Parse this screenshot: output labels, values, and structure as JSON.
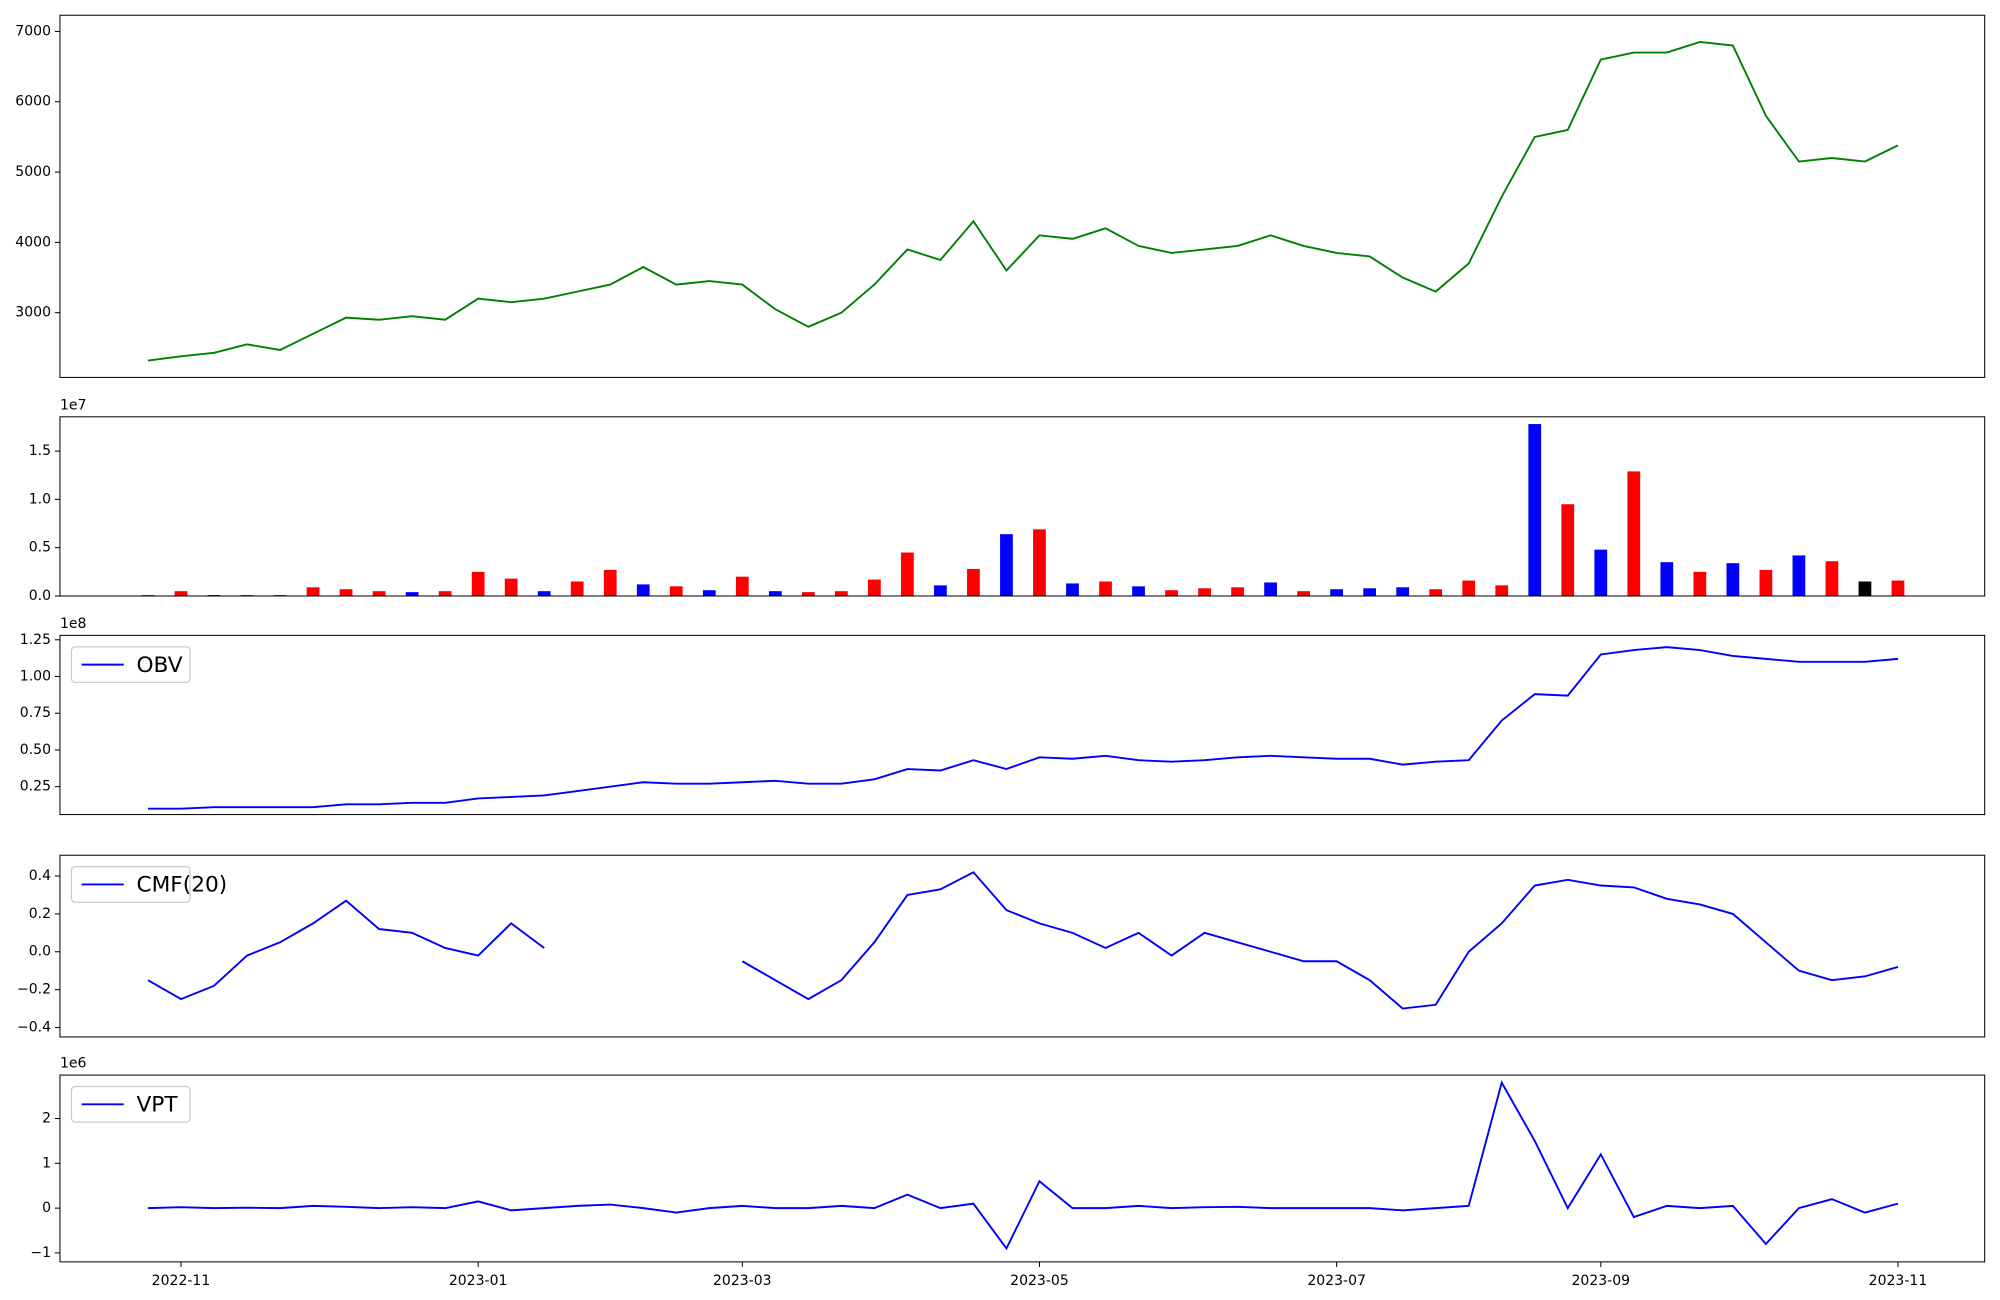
{
  "chart_data": [
    {
      "type": "line",
      "ylim": [
        2080,
        7230
      ],
      "yticks": [
        3000,
        4000,
        5000,
        6000,
        7000
      ],
      "series": [
        {
          "color": "green",
          "values": [
            2320,
            2380,
            2430,
            2550,
            2470,
            2700,
            2930,
            2900,
            2950,
            2900,
            3200,
            3150,
            3200,
            3300,
            3400,
            3650,
            3400,
            3450,
            3400,
            3050,
            2800,
            3000,
            3400,
            3900,
            3750,
            4300,
            3600,
            4100,
            4050,
            4200,
            3950,
            3850,
            3900,
            3950,
            4100,
            3950,
            3850,
            3800,
            3500,
            3300,
            3700,
            4650,
            5500,
            5600,
            6600,
            6700,
            6700,
            6850,
            6800,
            5800,
            5150,
            5200,
            5150,
            5380
          ]
        }
      ]
    },
    {
      "type": "bar",
      "ylim": [
        0,
        18550000
      ],
      "y_offset_label": "1e7",
      "yticks": [
        {
          "value": 0,
          "label": "0.0"
        },
        {
          "value": 5000000,
          "label": "0.5"
        },
        {
          "value": 10000000,
          "label": "1.0"
        },
        {
          "value": 15000000,
          "label": "1.5"
        }
      ],
      "values": [
        100000,
        500000,
        100000,
        100000,
        100000,
        900000,
        700000,
        500000,
        400000,
        500000,
        2500000,
        1800000,
        500000,
        1500000,
        2700000,
        1200000,
        1000000,
        600000,
        2000000,
        500000,
        400000,
        500000,
        1700000,
        4500000,
        1100000,
        2800000,
        6400000,
        6900000,
        1300000,
        1500000,
        1000000,
        600000,
        800000,
        900000,
        1400000,
        500000,
        700000,
        800000,
        900000,
        700000,
        1600000,
        1100000,
        17800000,
        9500000,
        4800000,
        12900000,
        3500000,
        2500000,
        3400000,
        2700000,
        4200000,
        3600000,
        1500000,
        1600000
      ],
      "colors": [
        "red",
        "red",
        "blue",
        "red",
        "red",
        "red",
        "red",
        "red",
        "blue",
        "red",
        "red",
        "red",
        "blue",
        "red",
        "red",
        "blue",
        "red",
        "blue",
        "red",
        "blue",
        "red",
        "red",
        "red",
        "red",
        "blue",
        "red",
        "blue",
        "red",
        "blue",
        "red",
        "blue",
        "red",
        "red",
        "red",
        "blue",
        "red",
        "blue",
        "blue",
        "blue",
        "red",
        "red",
        "red",
        "blue",
        "red",
        "blue",
        "red",
        "blue",
        "red",
        "blue",
        "red",
        "blue",
        "red",
        "black",
        "red"
      ]
    },
    {
      "type": "line",
      "ylim": [
        6000000,
        128000000
      ],
      "y_offset_label": "1e8",
      "legend": "upper left",
      "yticks": [
        {
          "value": 25000000,
          "label": "0.25"
        },
        {
          "value": 50000000,
          "label": "0.50"
        },
        {
          "value": 75000000,
          "label": "0.75"
        },
        {
          "value": 100000000,
          "label": "1.00"
        },
        {
          "value": 125000000,
          "label": "1.25"
        }
      ],
      "series": [
        {
          "name": "OBV",
          "color": "blue",
          "values": [
            10000000,
            10000000,
            11000000,
            11000000,
            11000000,
            11000000,
            13000000,
            13000000,
            14000000,
            14000000,
            17000000,
            18000000,
            19000000,
            22000000,
            25000000,
            28000000,
            27000000,
            27000000,
            28000000,
            29000000,
            27000000,
            27000000,
            30000000,
            37000000,
            36000000,
            43000000,
            37000000,
            45000000,
            44000000,
            46000000,
            43000000,
            42000000,
            43000000,
            45000000,
            46000000,
            45000000,
            44000000,
            44000000,
            40000000,
            42000000,
            43000000,
            70000000,
            88000000,
            87000000,
            115000000,
            118000000,
            120000000,
            118000000,
            114000000,
            112000000,
            110000000,
            110000000,
            110000000,
            112000000
          ]
        }
      ]
    },
    {
      "type": "line",
      "ylim": [
        -0.45,
        0.51
      ],
      "legend": "upper left",
      "yticks": [
        {
          "value": -0.4,
          "label": "−0.4"
        },
        {
          "value": -0.2,
          "label": "−0.2"
        },
        {
          "value": 0,
          "label": "0.0"
        },
        0.2,
        0.4
      ],
      "series": [
        {
          "name": "CMF(20)",
          "color": "blue",
          "values": [
            -0.15,
            -0.25,
            -0.18,
            -0.02,
            0.05,
            0.15,
            0.27,
            0.12,
            0.1,
            0.02,
            -0.02,
            0.15,
            0.02,
            null,
            null,
            null,
            null,
            null,
            -0.05,
            -0.15,
            -0.25,
            -0.15,
            0.05,
            0.3,
            0.33,
            0.42,
            0.22,
            0.15,
            0.1,
            0.02,
            0.1,
            -0.02,
            0.1,
            0.05,
            0,
            -0.05,
            -0.05,
            -0.15,
            -0.3,
            -0.28,
            0,
            0.15,
            0.35,
            0.38,
            0.35,
            0.34,
            0.28,
            0.25,
            0.2,
            0.05,
            -0.1,
            -0.15,
            -0.13,
            -0.08
          ]
        }
      ]
    },
    {
      "type": "line",
      "ylim": [
        -1200000,
        2970000
      ],
      "y_offset_label": "1e6",
      "legend": "upper left",
      "yticks": [
        {
          "value": -1000000,
          "label": "−1"
        },
        0,
        {
          "value": 1000000,
          "label": "1"
        },
        {
          "value": 2000000,
          "label": "2"
        }
      ],
      "categories": [
        null,
        "2022-11",
        null,
        null,
        null,
        null,
        null,
        null,
        null,
        null,
        "2023-01",
        null,
        null,
        null,
        null,
        null,
        null,
        null,
        "2023-03",
        null,
        null,
        null,
        null,
        null,
        null,
        null,
        null,
        "2023-05",
        null,
        null,
        null,
        null,
        null,
        null,
        null,
        null,
        "2023-07",
        null,
        null,
        null,
        null,
        null,
        null,
        null,
        "2023-09",
        null,
        null,
        null,
        null,
        null,
        null,
        null,
        null,
        "2023-11"
      ],
      "series": [
        {
          "name": "VPT",
          "color": "blue",
          "values": [
            0,
            20000,
            0,
            10000,
            0,
            50000,
            30000,
            0,
            20000,
            0,
            150000,
            -50000,
            0,
            50000,
            80000,
            0,
            -100000,
            0,
            50000,
            0,
            0,
            50000,
            0,
            300000,
            0,
            100000,
            -900000,
            600000,
            0,
            0,
            50000,
            0,
            20000,
            30000,
            0,
            0,
            0,
            0,
            -50000,
            0,
            50000,
            2800000,
            1500000,
            0,
            1200000,
            -200000,
            50000,
            0,
            50000,
            -800000,
            0,
            200000,
            -100000,
            100000
          ]
        }
      ]
    }
  ]
}
